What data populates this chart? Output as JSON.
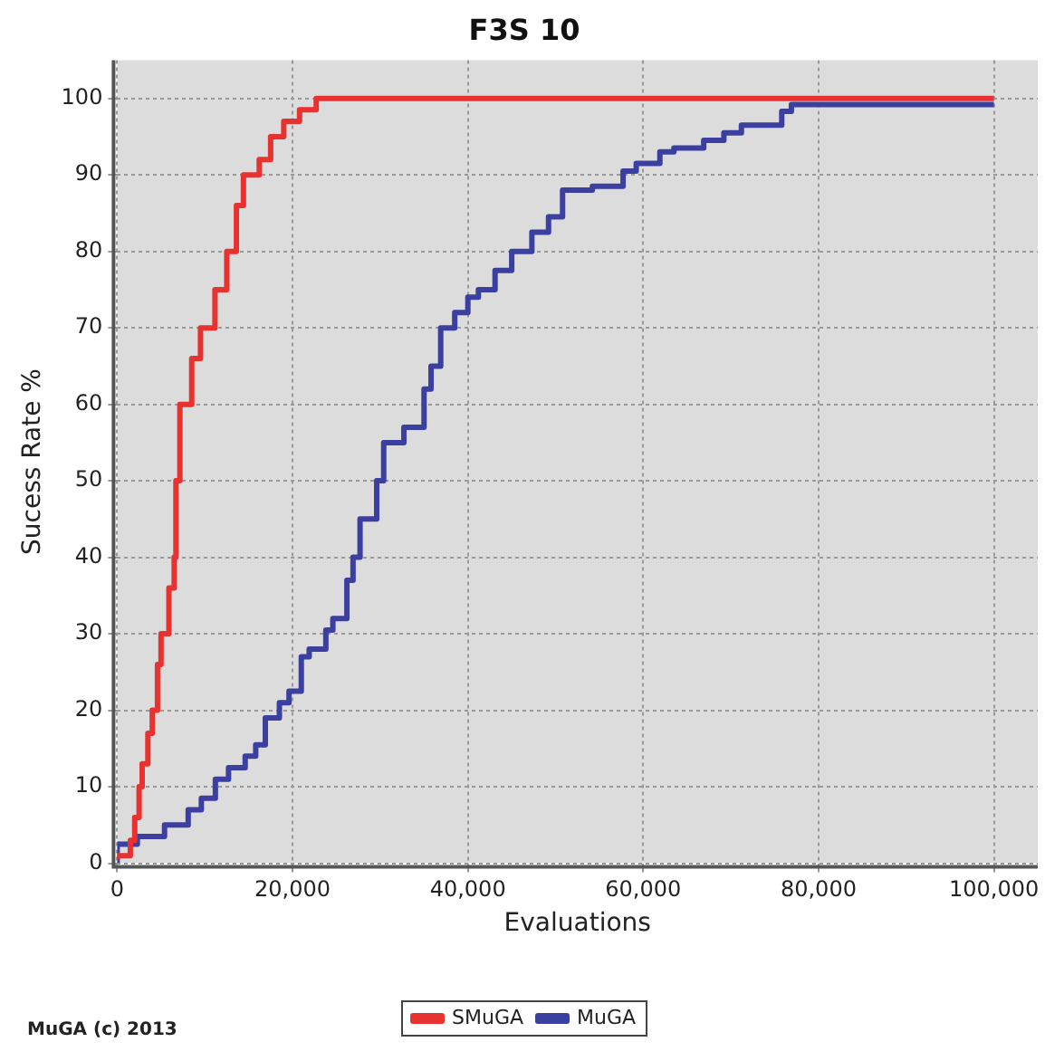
{
  "chart_data": {
    "type": "step",
    "title": "F3S 10",
    "xlabel": "Evaluations",
    "ylabel": "Sucess Rate %",
    "annotations": [
      "MuGA (c) 2013"
    ],
    "xlim": [
      0,
      105000
    ],
    "ylim": [
      0,
      105
    ],
    "xticks": [
      {
        "value": 0,
        "label": "0"
      },
      {
        "value": 20000,
        "label": "20,000"
      },
      {
        "value": 40000,
        "label": "40,000"
      },
      {
        "value": 60000,
        "label": "60,000"
      },
      {
        "value": 80000,
        "label": "80,000"
      },
      {
        "value": 100000,
        "label": "100,000"
      }
    ],
    "yticks": [
      0,
      10,
      20,
      30,
      40,
      50,
      60,
      70,
      80,
      90,
      100
    ],
    "grid": true,
    "legend": "bottom",
    "line_style": "solid",
    "marker": "none",
    "series": [
      {
        "name": "SMuGA",
        "color": "#e8322f",
        "x": [
          0,
          1500,
          2000,
          2500,
          2850,
          3500,
          4000,
          4600,
          5000,
          5900,
          6500,
          6700,
          7150,
          8500,
          9500,
          11150,
          12500,
          13600,
          14400,
          16200,
          17500,
          19000,
          20800,
          22700,
          25400,
          100000
        ],
        "values": [
          0.5,
          1,
          3,
          6,
          10,
          13,
          17,
          20,
          26,
          30,
          36,
          40,
          50,
          60,
          66,
          70,
          75,
          80,
          86,
          90,
          92,
          95,
          97,
          98.5,
          100,
          100
        ]
      },
      {
        "name": "MuGA",
        "color": "#3a3fa0",
        "x": [
          0,
          2300,
          5400,
          8100,
          8800,
          9600,
          11200,
          12700,
          14600,
          15800,
          16900,
          18500,
          19600,
          21000,
          21900,
          23800,
          24600,
          26200,
          26900,
          27700,
          29600,
          30400,
          32700,
          35000,
          35800,
          36900,
          38500,
          40000,
          41200,
          43100,
          45000,
          47300,
          49200,
          50800,
          54200,
          57700,
          59200,
          61900,
          63500,
          66900,
          69200,
          71200,
          75800,
          76900,
          93500,
          100000
        ],
        "values": [
          0,
          2.5,
          3.5,
          5,
          7,
          7,
          8.5,
          11,
          12.5,
          14,
          15.5,
          19,
          21,
          22.5,
          27,
          28,
          30.5,
          32,
          37,
          40,
          45,
          50,
          55,
          57,
          62,
          65,
          70,
          72,
          74,
          75,
          77.5,
          80,
          82.5,
          84.5,
          88,
          88.5,
          90.5,
          91.5,
          93,
          93.5,
          94.5,
          95.5,
          96.5,
          98.3,
          99.2,
          99.2
        ]
      }
    ]
  }
}
